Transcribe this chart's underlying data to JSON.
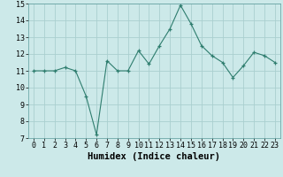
{
  "x": [
    0,
    1,
    2,
    3,
    4,
    5,
    6,
    7,
    8,
    9,
    10,
    11,
    12,
    13,
    14,
    15,
    16,
    17,
    18,
    19,
    20,
    21,
    22,
    23
  ],
  "y": [
    11,
    11,
    11,
    11.2,
    11,
    9.5,
    7.2,
    11.6,
    11,
    11,
    12.2,
    11.4,
    12.5,
    13.5,
    14.9,
    13.8,
    12.5,
    11.9,
    11.5,
    10.6,
    11.3,
    12.1,
    11.9,
    11.5
  ],
  "line_color": "#2e7d6e",
  "marker": "+",
  "marker_size": 3,
  "xlabel": "Humidex (Indice chaleur)",
  "ylim": [
    7,
    15
  ],
  "xlim": [
    -0.5,
    23.5
  ],
  "yticks": [
    7,
    8,
    9,
    10,
    11,
    12,
    13,
    14,
    15
  ],
  "xticks": [
    0,
    1,
    2,
    3,
    4,
    5,
    6,
    7,
    8,
    9,
    10,
    11,
    12,
    13,
    14,
    15,
    16,
    17,
    18,
    19,
    20,
    21,
    22,
    23
  ],
  "bg_color": "#cce9e9",
  "grid_color": "#b8d8d8",
  "tick_fontsize": 6,
  "xlabel_fontsize": 7.5
}
